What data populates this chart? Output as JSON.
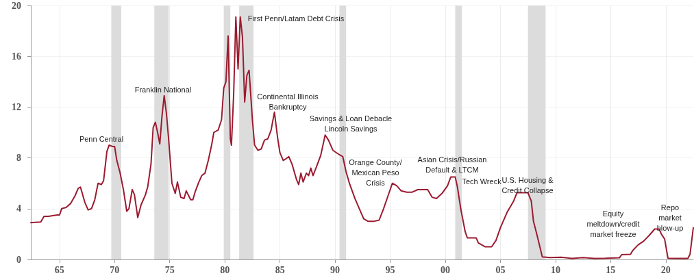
{
  "chart_data": {
    "type": "line",
    "color": "#9b1b30",
    "grid": true,
    "marker": "none",
    "line_style": "solid",
    "xlim": [
      1962.4,
      2022.5
    ],
    "ylim": [
      0,
      20
    ],
    "xticks": [
      {
        "value": 1965,
        "label": "65"
      },
      {
        "value": 1970,
        "label": "70"
      },
      {
        "value": 1975,
        "label": "75"
      },
      {
        "value": 1980,
        "label": "80"
      },
      {
        "value": 1985,
        "label": "85"
      },
      {
        "value": 1990,
        "label": "90"
      },
      {
        "value": 1995,
        "label": "95"
      },
      {
        "value": 2000,
        "label": "00"
      },
      {
        "value": 2005,
        "label": "05"
      },
      {
        "value": 2010,
        "label": "10"
      },
      {
        "value": 2015,
        "label": "15"
      },
      {
        "value": 2020,
        "label": "20"
      }
    ],
    "yticks": [
      0,
      4,
      8,
      12,
      16,
      20
    ],
    "x": [
      1962.4,
      1963.3,
      1963.6,
      1964.0,
      1964.8,
      1965.0,
      1965.2,
      1965.6,
      1966.0,
      1966.4,
      1966.7,
      1966.9,
      1967.3,
      1967.6,
      1967.9,
      1968.2,
      1968.5,
      1968.8,
      1969.0,
      1969.3,
      1969.5,
      1969.8,
      1970.0,
      1970.2,
      1970.5,
      1970.8,
      1971.1,
      1971.3,
      1971.6,
      1971.8,
      1972.1,
      1972.4,
      1972.8,
      1973.0,
      1973.3,
      1973.5,
      1973.7,
      1973.9,
      1974.1,
      1974.3,
      1974.5,
      1974.7,
      1974.9,
      1975.2,
      1975.5,
      1975.7,
      1976.0,
      1976.3,
      1976.5,
      1976.9,
      1977.1,
      1977.3,
      1977.6,
      1977.9,
      1978.2,
      1978.5,
      1978.8,
      1979.0,
      1979.4,
      1979.7,
      1979.9,
      1980.1,
      1980.3,
      1980.5,
      1980.6,
      1980.8,
      1981.0,
      1981.2,
      1981.4,
      1981.6,
      1981.8,
      1982.0,
      1982.2,
      1982.5,
      1982.7,
      1983.0,
      1983.3,
      1983.6,
      1983.9,
      1984.2,
      1984.5,
      1984.8,
      1985.0,
      1985.3,
      1985.5,
      1985.8,
      1986.1,
      1986.5,
      1986.7,
      1986.9,
      1987.1,
      1987.4,
      1987.6,
      1987.8,
      1988.0,
      1988.4,
      1988.7,
      1989.1,
      1989.4,
      1989.8,
      1990.3,
      1990.7,
      1991.0,
      1991.3,
      1991.8,
      1992.2,
      1992.6,
      1993.0,
      1993.5,
      1994.0,
      1994.4,
      1994.8,
      1995.2,
      1995.6,
      1996.0,
      1996.5,
      1997.0,
      1997.5,
      1998.4,
      1998.8,
      1999.2,
      1999.7,
      2000.2,
      2000.5,
      2000.9,
      2001.1,
      2001.4,
      2001.8,
      2002.0,
      2002.8,
      2003.0,
      2003.6,
      2004.2,
      2004.6,
      2005.0,
      2005.6,
      2006.2,
      2006.5,
      2007.5,
      2007.8,
      2008.0,
      2008.3,
      2008.8,
      2009.5,
      2010.5,
      2011.5,
      2012.5,
      2013.5,
      2014.5,
      2015.8,
      2016.0,
      2016.8,
      2017.0,
      2017.5,
      2018.0,
      2018.5,
      2019.0,
      2019.4,
      2019.6,
      2019.9,
      2020.2,
      2021.0,
      2022.0,
      2022.2,
      2022.5
    ],
    "values": [
      2.9,
      2.95,
      3.4,
      3.4,
      3.5,
      3.5,
      4.0,
      4.1,
      4.4,
      5.0,
      5.6,
      5.7,
      4.5,
      3.9,
      4.0,
      4.7,
      6.0,
      5.9,
      6.2,
      8.5,
      9.0,
      8.9,
      8.9,
      7.8,
      6.8,
      5.5,
      3.8,
      4.0,
      5.5,
      5.1,
      3.3,
      4.3,
      5.1,
      5.7,
      7.5,
      10.4,
      10.8,
      10.0,
      9.1,
      11.3,
      12.9,
      11.5,
      9.5,
      6.0,
      5.2,
      6.1,
      4.9,
      4.8,
      5.4,
      4.7,
      4.7,
      5.3,
      6.0,
      6.6,
      6.8,
      7.8,
      9.0,
      10.0,
      10.2,
      11.0,
      13.5,
      14.0,
      17.6,
      9.5,
      9.0,
      13.0,
      19.1,
      15.0,
      19.1,
      17.5,
      12.4,
      14.5,
      14.9,
      11.0,
      9.0,
      8.6,
      8.7,
      9.4,
      9.5,
      10.2,
      11.6,
      9.5,
      8.4,
      7.8,
      7.9,
      8.1,
      7.5,
      6.3,
      5.9,
      6.8,
      6.1,
      6.8,
      6.6,
      7.2,
      6.6,
      7.5,
      8.2,
      9.8,
      9.4,
      8.6,
      8.3,
      8.1,
      6.9,
      6.0,
      4.8,
      4.0,
      3.2,
      3.0,
      3.0,
      3.1,
      4.0,
      5.0,
      6.0,
      5.8,
      5.4,
      5.3,
      5.3,
      5.5,
      5.5,
      4.9,
      4.8,
      5.2,
      5.8,
      6.5,
      6.5,
      5.7,
      4.0,
      2.2,
      1.7,
      1.7,
      1.3,
      1.0,
      1.0,
      1.5,
      2.5,
      3.7,
      4.6,
      5.25,
      5.25,
      4.6,
      3.0,
      2.0,
      0.2,
      0.15,
      0.18,
      0.08,
      0.15,
      0.08,
      0.09,
      0.13,
      0.38,
      0.4,
      0.7,
      1.15,
      1.45,
      1.9,
      2.4,
      2.4,
      2.0,
      1.6,
      0.1,
      0.08,
      0.08,
      0.4,
      2.5
    ],
    "bands": [
      {
        "axis": "x",
        "from": 1969.7,
        "to": 1970.6,
        "color": "#dcdcdc"
      },
      {
        "axis": "x",
        "from": 1973.6,
        "to": 1974.9,
        "color": "#dcdcdc"
      },
      {
        "axis": "x",
        "from": 1979.9,
        "to": 1980.5,
        "color": "#dcdcdc"
      },
      {
        "axis": "x",
        "from": 1981.3,
        "to": 1982.6,
        "color": "#dcdcdc"
      },
      {
        "axis": "x",
        "from": 1990.4,
        "to": 1991.0,
        "color": "#dcdcdc"
      },
      {
        "axis": "x",
        "from": 2000.9,
        "to": 2001.5,
        "color": "#dcdcdc"
      },
      {
        "axis": "x",
        "from": 2007.5,
        "to": 2009.1,
        "color": "#dcdcdc"
      }
    ],
    "annotations": [
      "Penn Central",
      "Franklin National",
      "First Penn/Latam Debt Crisis",
      "Continental Illinois\nBankruptcy",
      "Savings & Loan Debacle\nLincoln Savings",
      "Orange County/\nMexican Peso\nCrisis",
      "Asian Crisis/Russian\nDefault & LTCM",
      "Tech Wreck",
      "U.S. Housing &\nCredit Collapse",
      "Equity\nmeltdown/credit\nmarket freeze",
      "Repo\nmarket\nblow-up"
    ]
  }
}
